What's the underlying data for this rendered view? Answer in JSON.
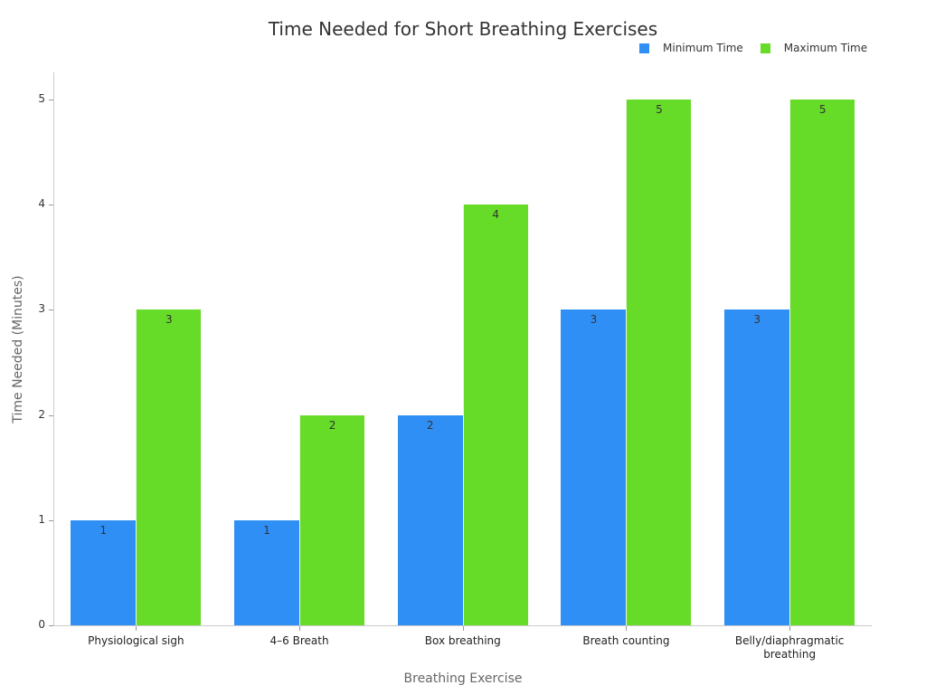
{
  "chart_data": {
    "type": "bar",
    "title": "Time Needed for Short Breathing Exercises",
    "xlabel": "Breathing Exercise",
    "ylabel": "Time Needed (Minutes)",
    "ylim": [
      0,
      5
    ],
    "yticks": [
      "0",
      "1",
      "2",
      "3",
      "4",
      "5"
    ],
    "grid": false,
    "legend_position": "top-right",
    "categories": [
      "Physiological sigh",
      "4–6 Breath",
      "Box breathing",
      "Breath counting",
      "Belly/diaphragmatic breathing"
    ],
    "category_lines": [
      [
        "Physiological sigh"
      ],
      [
        "4–6 Breath"
      ],
      [
        "Box breathing"
      ],
      [
        "Breath counting"
      ],
      [
        "Belly/diaphragmatic",
        "breathing"
      ]
    ],
    "series": [
      {
        "name": "Minimum Time",
        "color": "#2f8ff5",
        "values": [
          1,
          1,
          2,
          3,
          3
        ]
      },
      {
        "name": "Maximum Time",
        "color": "#66db28",
        "values": [
          3,
          2,
          4,
          5,
          5
        ]
      }
    ]
  }
}
